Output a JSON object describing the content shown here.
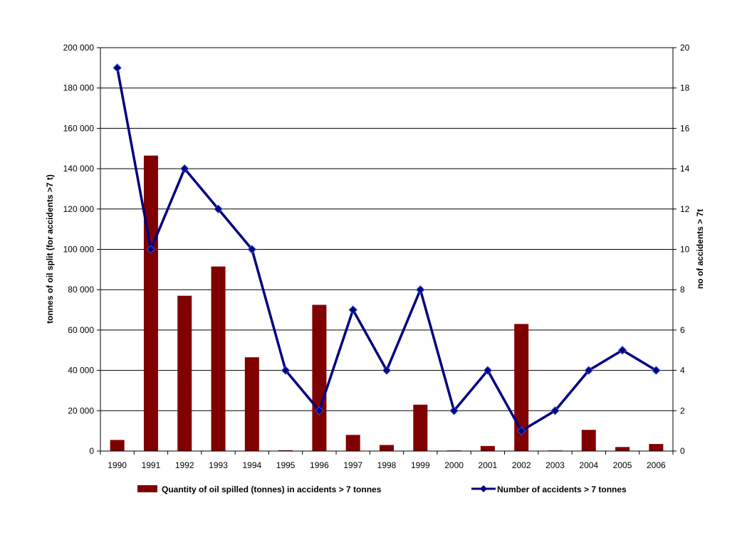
{
  "chart_data": {
    "type": "bar+line",
    "title": "",
    "categories": [
      "1990",
      "1991",
      "1992",
      "1993",
      "1994",
      "1995",
      "1996",
      "1997",
      "1998",
      "1999",
      "2000",
      "2001",
      "2002",
      "2003",
      "2004",
      "2005",
      "2006"
    ],
    "series": [
      {
        "name": "Quantity of oil spilled (tonnes) in accidents > 7 tonnes",
        "type": "bar",
        "axis": "left",
        "color": "#800000",
        "values": [
          5500,
          146500,
          77000,
          91500,
          46500,
          400,
          72500,
          8000,
          3000,
          23000,
          300,
          2500,
          63000,
          300,
          10500,
          2000,
          3500
        ]
      },
      {
        "name": "Number of accidents > 7 tonnes",
        "type": "line",
        "axis": "right",
        "color": "#000080",
        "marker": "diamond",
        "values": [
          19,
          10,
          14,
          12,
          10,
          4,
          2,
          7,
          4,
          8,
          2,
          4,
          1,
          2,
          4,
          5,
          4
        ]
      }
    ],
    "ylabel": "tonnes of oil split (for accidents >7 t)",
    "y2label": "no of accidents > 7t",
    "ylim": [
      0,
      200000
    ],
    "y2lim": [
      0,
      20
    ],
    "yticks": [
      "0",
      "20 000",
      "40 000",
      "60 000",
      "80 000",
      "100 000",
      "120 000",
      "140 000",
      "160 000",
      "180 000",
      "200 000"
    ],
    "y2ticks": [
      "0",
      "2",
      "4",
      "6",
      "8",
      "10",
      "12",
      "14",
      "16",
      "18",
      "20"
    ],
    "grid": true,
    "legend_position": "bottom"
  }
}
